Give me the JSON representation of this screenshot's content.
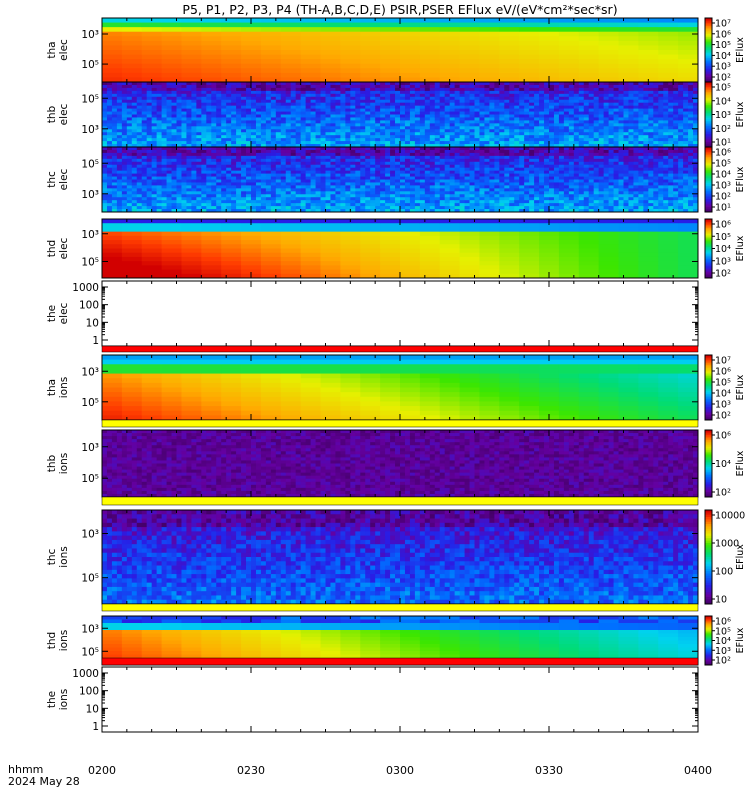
{
  "chart_data": {
    "type": "heatmap",
    "title": "P5, P1, P2, P3, P4 (TH-A,B,C,D,E) PSIR,PSER EFlux eV/(eV*cm²*sec*sr)",
    "x_time_label": "hhmm",
    "x_date_label": "2024 May 28",
    "x_ticks": [
      "0200",
      "0230",
      "0300",
      "0330",
      "0400"
    ],
    "colorbar_label": "EFlux",
    "panels": [
      {
        "id": "tha_elec",
        "ylabel": [
          "tha",
          "elec"
        ],
        "kind": "spectrogram",
        "profile": "tha_e",
        "y_ticks": [
          "10³",
          "10⁵"
        ],
        "cbar_ticks": [
          "10²",
          "10³",
          "10⁴",
          "10⁵",
          "10⁶",
          "10⁷"
        ],
        "cbar_colorbar": true,
        "bottom_stripe": ""
      },
      {
        "id": "thb_elec",
        "ylabel": [
          "thb",
          "elec"
        ],
        "kind": "spectrogram",
        "profile": "noise_blue",
        "y_ticks": [
          "10⁵",
          "10³"
        ],
        "cbar_ticks": [
          "10¹",
          "10²",
          "10³",
          "10⁴",
          "10⁵"
        ],
        "cbar_colorbar": true,
        "bottom_stripe": ""
      },
      {
        "id": "thc_elec",
        "ylabel": [
          "thc",
          "elec"
        ],
        "kind": "spectrogram",
        "profile": "noise_blue",
        "y_ticks": [
          "10⁵",
          "10³"
        ],
        "cbar_ticks": [
          "10¹",
          "10²",
          "10³",
          "10⁴",
          "10⁵",
          "10⁶"
        ],
        "cbar_colorbar": true,
        "bottom_stripe": ""
      },
      {
        "id": "thd_elec",
        "ylabel": [
          "thd",
          "elec"
        ],
        "kind": "spectrogram",
        "profile": "thd_e",
        "y_ticks": [
          "10³",
          "10⁵"
        ],
        "cbar_ticks": [
          "10²",
          "10³",
          "10⁴",
          "10⁵",
          "10⁶"
        ],
        "cbar_colorbar": true,
        "bottom_stripe": ""
      },
      {
        "id": "the_elec",
        "ylabel": [
          "the",
          "elec"
        ],
        "kind": "empty",
        "profile": "",
        "y_ticks": [
          "1000",
          "100",
          "10",
          "1"
        ],
        "cbar_ticks": [],
        "cbar_colorbar": false,
        "bottom_stripe": "red"
      },
      {
        "id": "tha_ions",
        "ylabel": [
          "tha",
          "ions"
        ],
        "kind": "spectrogram",
        "profile": "tha_i",
        "y_ticks": [
          "10³",
          "10⁵"
        ],
        "cbar_ticks": [
          "10²",
          "10³",
          "10⁴",
          "10⁵",
          "10⁶",
          "10⁷"
        ],
        "cbar_colorbar": true,
        "bottom_stripe": "yellow"
      },
      {
        "id": "thb_ions",
        "ylabel": [
          "thb",
          "ions"
        ],
        "kind": "spectrogram",
        "profile": "noise_purple",
        "y_ticks": [
          "10³",
          "10⁵"
        ],
        "cbar_ticks": [
          "10²",
          "10⁴",
          "10⁶"
        ],
        "cbar_colorbar": true,
        "bottom_stripe": "yellow"
      },
      {
        "id": "thc_ions",
        "ylabel": [
          "thc",
          "ions"
        ],
        "kind": "spectrogram",
        "profile": "noise_blue2",
        "y_ticks": [
          "10³",
          "10⁵"
        ],
        "cbar_ticks": [
          "10",
          "100",
          "1000",
          "10000"
        ],
        "cbar_colorbar": true,
        "bottom_stripe": "yellow"
      },
      {
        "id": "thd_ions",
        "ylabel": [
          "thd",
          "ions"
        ],
        "kind": "spectrogram",
        "profile": "thd_i",
        "y_ticks": [
          "10³",
          "10⁵"
        ],
        "cbar_ticks": [
          "10²",
          "10³",
          "10⁴",
          "10⁵",
          "10⁶"
        ],
        "cbar_colorbar": true,
        "bottom_stripe": "red"
      },
      {
        "id": "the_ions",
        "ylabel": [
          "the",
          "ions"
        ],
        "kind": "empty",
        "profile": "",
        "y_ticks": [
          "1000",
          "100",
          "10",
          "1"
        ],
        "cbar_ticks": [],
        "cbar_colorbar": false,
        "bottom_stripe": ""
      }
    ]
  }
}
